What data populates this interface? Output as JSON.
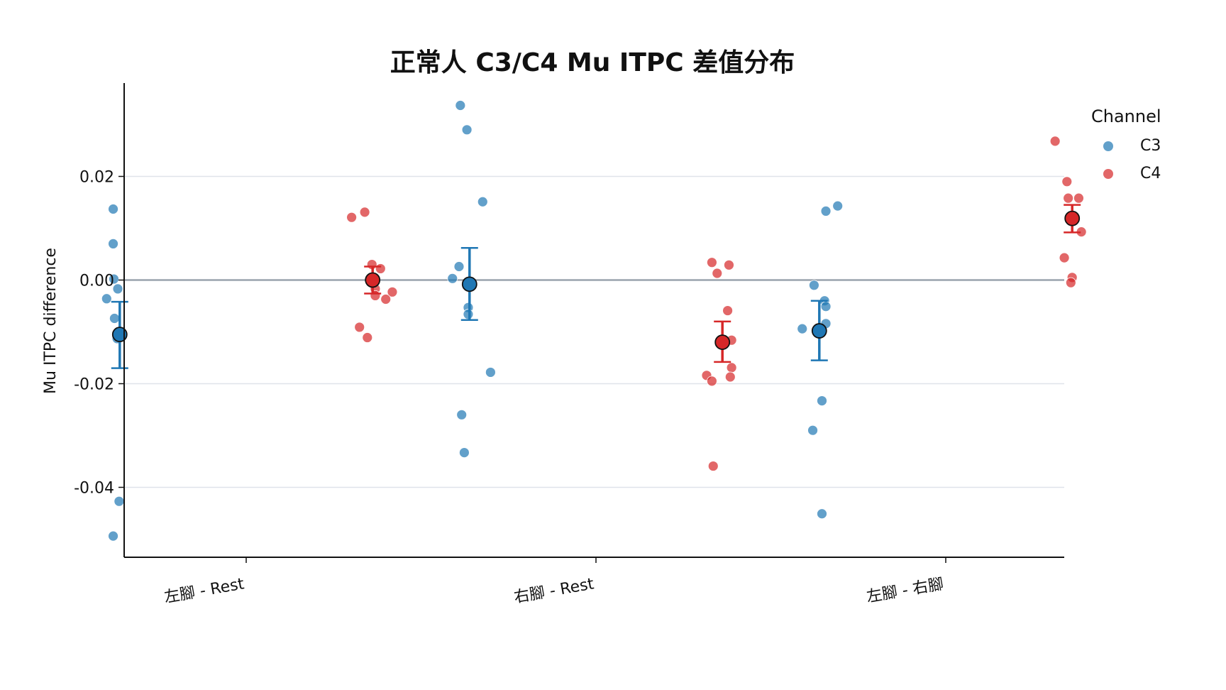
{
  "chart_data": {
    "type": "scatter",
    "title": "正常人 C3/C4 Mu ITPC 差值分布",
    "xlabel": "",
    "ylabel": "Mu ITPC difference",
    "categories": [
      "左腳 - Rest",
      "右腳 - Rest",
      "左腳 - 右腳"
    ],
    "ylim": [
      -0.053,
      0.038
    ],
    "yticks": [
      0.02,
      0.0,
      -0.02,
      -0.04
    ],
    "ytick_labels": [
      "0.02",
      "0.00",
      "-0.02",
      "-0.04"
    ],
    "grid": true,
    "reference_line": 0.0,
    "legend": {
      "title": "Channel",
      "placement": "top-right outside"
    },
    "series": [
      {
        "name": "C3",
        "color": "#1f77b4",
        "points": [
          [
            [
              -0.05,
              0.0137
            ],
            [
              -0.05,
              0.007
            ],
            [
              -0.045,
              0.0002
            ],
            [
              -0.015,
              -0.0017
            ],
            [
              -0.1,
              -0.0036
            ],
            [
              -0.04,
              -0.0074
            ],
            [
              -0.02,
              -0.0113
            ],
            [
              -0.005,
              -0.0427
            ],
            [
              -0.05,
              -0.0494
            ]
          ],
          [
            [
              -0.07,
              0.0337
            ],
            [
              -0.02,
              0.029
            ],
            [
              0.1,
              0.0151
            ],
            [
              -0.13,
              0.0003
            ],
            [
              -0.08,
              0.0026
            ],
            [
              -0.01,
              -0.0053
            ],
            [
              -0.01,
              -0.0066
            ],
            [
              0.16,
              -0.0178
            ],
            [
              -0.06,
              -0.026
            ],
            [
              -0.04,
              -0.0333
            ]
          ],
          [
            [
              0.05,
              0.0133
            ],
            [
              0.14,
              0.0143
            ],
            [
              -0.04,
              -0.001
            ],
            [
              0.04,
              -0.004
            ],
            [
              0.05,
              -0.0051
            ],
            [
              -0.13,
              -0.0094
            ],
            [
              0.05,
              -0.0084
            ],
            [
              0.02,
              -0.0233
            ],
            [
              -0.05,
              -0.029
            ],
            [
              0.02,
              -0.0451
            ]
          ]
        ],
        "means": [
          -0.0105,
          -0.0008,
          -0.0098
        ],
        "err_low": [
          -0.017,
          -0.0077,
          -0.0155
        ],
        "err_high": [
          -0.0042,
          0.0062,
          -0.004
        ]
      },
      {
        "name": "C4",
        "color": "#d62728",
        "points": [
          [
            [
              -0.16,
              0.0121
            ],
            [
              -0.06,
              0.0131
            ],
            [
              -0.005,
              0.003
            ],
            [
              0.06,
              0.0022
            ],
            [
              0.02,
              -0.0017
            ],
            [
              0.02,
              -0.003
            ],
            [
              0.15,
              -0.0023
            ],
            [
              0.1,
              -0.0037
            ],
            [
              -0.1,
              -0.0091
            ],
            [
              -0.04,
              -0.0111
            ]
          ],
          [
            [
              -0.08,
              0.0034
            ],
            [
              -0.04,
              0.0013
            ],
            [
              0.05,
              0.0029
            ],
            [
              0.04,
              -0.0059
            ],
            [
              0.07,
              -0.0116
            ],
            [
              0.07,
              -0.0169
            ],
            [
              -0.12,
              -0.0184
            ],
            [
              -0.08,
              -0.0195
            ],
            [
              0.06,
              -0.0187
            ],
            [
              -0.07,
              -0.0359
            ]
          ],
          [
            [
              -0.13,
              0.0268
            ],
            [
              -0.04,
              0.019
            ],
            [
              -0.03,
              0.0158
            ],
            [
              0.05,
              0.0158
            ],
            [
              -0.06,
              0.0043
            ],
            [
              0.07,
              0.0093
            ],
            [
              0.0,
              0.0005
            ],
            [
              -0.01,
              -0.0005
            ]
          ]
        ],
        "means": [
          0.0,
          -0.012,
          0.0119
        ],
        "err_low": [
          -0.0026,
          -0.0158,
          0.0092
        ],
        "err_high": [
          0.0026,
          -0.008,
          0.0145
        ]
      }
    ]
  }
}
